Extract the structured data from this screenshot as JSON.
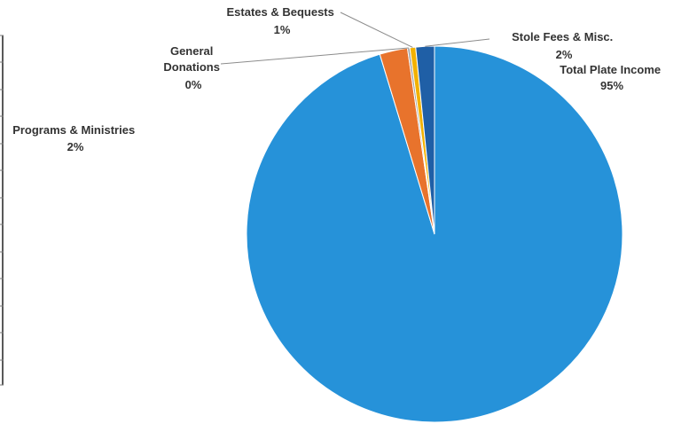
{
  "chart_data": {
    "type": "pie",
    "title": "",
    "legend": "none",
    "slices": [
      {
        "label": "Total Plate Income",
        "pct_text": "95%",
        "value": 95.3,
        "color": "#2692d9"
      },
      {
        "label": "Programs & Ministries",
        "pct_text": "2%",
        "value": 2.4,
        "color": "#e8732c"
      },
      {
        "label": "General Donations",
        "pct_text": "0%",
        "value": 0.2,
        "color": "#9e9e9e"
      },
      {
        "label": "Estates & Bequests",
        "pct_text": "1%",
        "value": 0.5,
        "color": "#f2b100"
      },
      {
        "label": "Stole Fees & Misc.",
        "pct_text": "2%",
        "value": 1.6,
        "color": "#1f5fa6"
      }
    ]
  }
}
